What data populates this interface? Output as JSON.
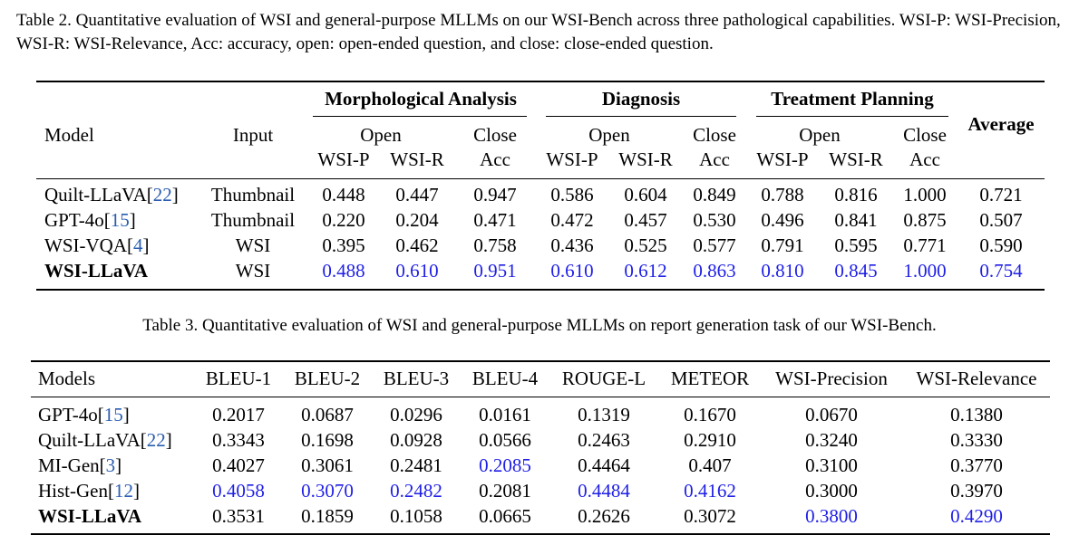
{
  "table2": {
    "caption": "Table 2.  Quantitative evaluation of WSI and general-purpose MLLMs on our WSI-Bench across three pathological capabilities. WSI-P: WSI-Precision, WSI-R: WSI-Relevance, Acc: accuracy, open: open-ended question, and close: close-ended question.",
    "headers": {
      "model": "Model",
      "input": "Input",
      "groups": [
        "Morphological Analysis",
        "Diagnosis",
        "Treatment Planning"
      ],
      "open": "Open",
      "close": "Close",
      "average": "Average",
      "sub": [
        "WSI-P",
        "WSI-R",
        "Acc"
      ]
    },
    "rows": [
      {
        "name": "Quilt-LLaVA",
        "ref": "22",
        "input": "Thumbnail",
        "values": [
          "0.448",
          "0.447",
          "0.947",
          "0.586",
          "0.604",
          "0.849",
          "0.788",
          "0.816",
          "1.000",
          "0.721"
        ]
      },
      {
        "name": "GPT-4o",
        "ref": "15",
        "input": "Thumbnail",
        "values": [
          "0.220",
          "0.204",
          "0.471",
          "0.472",
          "0.457",
          "0.530",
          "0.496",
          "0.841",
          "0.875",
          "0.507"
        ]
      },
      {
        "name": "WSI-VQA",
        "ref": "4",
        "input": "WSI",
        "values": [
          "0.395",
          "0.462",
          "0.758",
          "0.436",
          "0.525",
          "0.577",
          "0.791",
          "0.595",
          "0.771",
          "0.590"
        ]
      },
      {
        "name": "WSI-LLaVA",
        "ref": "",
        "input": "WSI",
        "values": [
          "0.488",
          "0.610",
          "0.951",
          "0.610",
          "0.612",
          "0.863",
          "0.810",
          "0.845",
          "1.000",
          "0.754"
        ]
      }
    ]
  },
  "table3": {
    "caption": "Table 3.  Quantitative evaluation of WSI and general-purpose MLLMs on report generation task of our WSI-Bench.",
    "headers": [
      "Models",
      "BLEU-1",
      "BLEU-2",
      "BLEU-3",
      "BLEU-4",
      "ROUGE-L",
      "METEOR",
      "WSI-Precision",
      "WSI-Relevance"
    ],
    "rows": [
      {
        "name": "GPT-4o",
        "ref": "15",
        "values": [
          "0.2017",
          "0.0687",
          "0.0296",
          "0.0161",
          "0.1319",
          "0.1670",
          "0.0670",
          "0.1380"
        ]
      },
      {
        "name": "Quilt-LLaVA",
        "ref": "22",
        "values": [
          "0.3343",
          "0.1698",
          "0.0928",
          "0.0566",
          "0.2463",
          "0.2910",
          "0.3240",
          "0.3330"
        ]
      },
      {
        "name": "MI-Gen",
        "ref": "3",
        "values": [
          "0.4027",
          "0.3061",
          "0.2481",
          "0.2085",
          "0.4464",
          "0.407",
          "0.3100",
          "0.3770"
        ]
      },
      {
        "name": "Hist-Gen",
        "ref": "12",
        "values": [
          "0.4058",
          "0.3070",
          "0.2482",
          "0.2081",
          "0.4484",
          "0.4162",
          "0.3000",
          "0.3970"
        ]
      },
      {
        "name": "WSI-LLaVA",
        "ref": "",
        "values": [
          "0.3531",
          "0.1859",
          "0.1058",
          "0.0665",
          "0.2626",
          "0.3072",
          "0.3800",
          "0.4290"
        ]
      }
    ]
  }
}
